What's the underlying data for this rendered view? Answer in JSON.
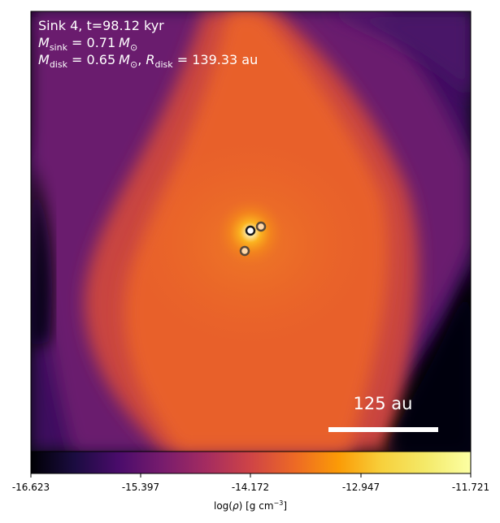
{
  "annotations": {
    "line1": "Sink 4, t=98.12 kyr",
    "line2_sym": "M",
    "line2_sub": "sink",
    "line2_val": " = 0.71",
    "line2_unit_sym": "M",
    "line2_unit_sub": "⊙",
    "line3_sym": "M",
    "line3_sub": "disk",
    "line3_val": " = 0.65",
    "line3_unit_sym": "M",
    "line3_unit_sub": "⊙",
    "line3_sep": ", ",
    "line3_rsym": "R",
    "line3_rsub": "disk",
    "line3_rval": " = 139.33 au"
  },
  "scale_bar": {
    "label": "125 au",
    "color": "#ffffff"
  },
  "colorbar": {
    "colormap": "inferno",
    "ticks": [
      "-16.623",
      "-15.397",
      "-14.172",
      "-12.947",
      "-11.721"
    ],
    "label_pre": "log(",
    "label_rho": "ρ",
    "label_mid": ") [g cm",
    "label_sup": "−3",
    "label_post": "]"
  },
  "colors": {
    "background_dark": "#03020c",
    "filament": "#e8602a",
    "envelope": "#5a1470",
    "core_bright": "#fde49a",
    "text": "#ffffff"
  },
  "sinks": [
    {
      "name": "sink-primary",
      "fill": "#ffffff",
      "edge": "#1a1a1a"
    },
    {
      "name": "sink-companion-1",
      "fill": "#ffd8a8",
      "edge": "#5a4a3a"
    },
    {
      "name": "sink-companion-2",
      "fill": "#ffd8a8",
      "edge": "#5a4a3a"
    }
  ]
}
